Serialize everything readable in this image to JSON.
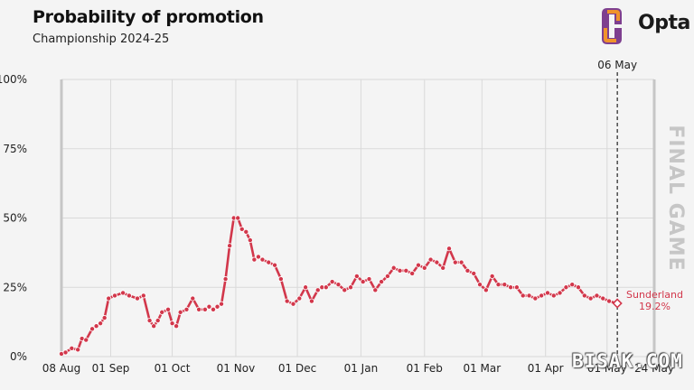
{
  "header": {
    "title": "Probability of promotion",
    "subtitle": "Championship 2024-25",
    "brand": "Opta"
  },
  "colors": {
    "line": "#d2374b",
    "marker_dot": "#d2374b",
    "grid": "#d9d9d9",
    "final_band": "#c6c6c6",
    "brand_orange": "#f0932b",
    "brand_purple": "#7e3f8f"
  },
  "annotations": {
    "current_date": "06 May",
    "final_game": "FINAL GAME",
    "team_name": "Sunderland",
    "team_value": "19.2%"
  },
  "watermark": "BISAK.COM",
  "chart_data": {
    "type": "line",
    "title": "Probability of promotion",
    "subtitle": "Championship 2024-25",
    "xlabel": "",
    "ylabel": "",
    "x_start": "2024-08-08",
    "x_end": "2025-05-24",
    "x_ticks": [
      {
        "date": "2024-08-08",
        "label": "08 Aug"
      },
      {
        "date": "2024-09-01",
        "label": "01 Sep"
      },
      {
        "date": "2024-10-01",
        "label": "01 Oct"
      },
      {
        "date": "2024-11-01",
        "label": "01 Nov"
      },
      {
        "date": "2024-12-01",
        "label": "01 Dec"
      },
      {
        "date": "2025-01-01",
        "label": "01 Jan"
      },
      {
        "date": "2025-02-01",
        "label": "01 Feb"
      },
      {
        "date": "2025-03-01",
        "label": "01 Mar"
      },
      {
        "date": "2025-04-01",
        "label": "01 Apr"
      },
      {
        "date": "2025-05-01",
        "label": "01 May"
      },
      {
        "date": "2025-05-24",
        "label": "24 May"
      }
    ],
    "y_ticks": [
      "0%",
      "25%",
      "50%",
      "75%",
      "100%"
    ],
    "ylim": [
      0,
      100
    ],
    "grid": true,
    "current_date": "2025-05-06",
    "final_game_date": "2025-05-24",
    "series": [
      {
        "name": "Sunderland",
        "last_value": 19.2,
        "x": [
          "2024-08-08",
          "2024-08-10",
          "2024-08-13",
          "2024-08-16",
          "2024-08-18",
          "2024-08-20",
          "2024-08-23",
          "2024-08-25",
          "2024-08-27",
          "2024-08-29",
          "2024-08-31",
          "2024-09-03",
          "2024-09-07",
          "2024-09-10",
          "2024-09-14",
          "2024-09-17",
          "2024-09-20",
          "2024-09-22",
          "2024-09-24",
          "2024-09-26",
          "2024-09-29",
          "2024-10-01",
          "2024-10-03",
          "2024-10-05",
          "2024-10-08",
          "2024-10-11",
          "2024-10-14",
          "2024-10-17",
          "2024-10-19",
          "2024-10-21",
          "2024-10-23",
          "2024-10-25",
          "2024-10-27",
          "2024-10-29",
          "2024-10-31",
          "2024-11-02",
          "2024-11-04",
          "2024-11-06",
          "2024-11-08",
          "2024-11-10",
          "2024-11-12",
          "2024-11-14",
          "2024-11-17",
          "2024-11-20",
          "2024-11-23",
          "2024-11-26",
          "2024-11-29",
          "2024-12-02",
          "2024-12-05",
          "2024-12-08",
          "2024-12-11",
          "2024-12-13",
          "2024-12-15",
          "2024-12-18",
          "2024-12-21",
          "2024-12-24",
          "2024-12-27",
          "2024-12-30",
          "2025-01-02",
          "2025-01-05",
          "2025-01-08",
          "2025-01-11",
          "2025-01-14",
          "2025-01-17",
          "2025-01-20",
          "2025-01-23",
          "2025-01-26",
          "2025-01-29",
          "2025-02-01",
          "2025-02-04",
          "2025-02-07",
          "2025-02-10",
          "2025-02-13",
          "2025-02-16",
          "2025-02-19",
          "2025-02-22",
          "2025-02-25",
          "2025-02-28",
          "2025-03-03",
          "2025-03-06",
          "2025-03-09",
          "2025-03-12",
          "2025-03-15",
          "2025-03-18",
          "2025-03-21",
          "2025-03-24",
          "2025-03-27",
          "2025-03-30",
          "2025-04-02",
          "2025-04-05",
          "2025-04-08",
          "2025-04-11",
          "2025-04-14",
          "2025-04-17",
          "2025-04-20",
          "2025-04-23",
          "2025-04-26",
          "2025-04-29",
          "2025-05-02",
          "2025-05-06"
        ],
        "values": [
          1,
          1.5,
          3,
          2.5,
          6.5,
          6,
          10,
          11,
          12,
          14,
          21,
          22,
          23,
          22,
          21,
          22,
          13,
          11,
          13,
          16,
          17,
          12,
          11,
          16,
          17,
          21,
          17,
          17,
          18,
          17,
          18,
          19,
          28,
          40,
          50,
          50,
          46,
          45,
          42,
          35,
          36,
          35,
          34,
          33,
          28,
          20,
          19,
          21,
          25,
          20,
          24,
          25,
          25,
          27,
          26,
          24,
          25,
          29,
          27,
          28,
          24,
          27,
          29,
          32,
          31,
          31,
          30,
          33,
          32,
          35,
          34,
          32,
          39,
          34,
          34,
          31,
          30,
          26,
          24,
          29,
          26,
          26,
          25,
          25,
          22,
          22,
          21,
          22,
          23,
          22,
          23,
          25,
          26,
          25,
          22,
          21,
          22,
          21,
          20,
          19.2
        ]
      }
    ]
  }
}
